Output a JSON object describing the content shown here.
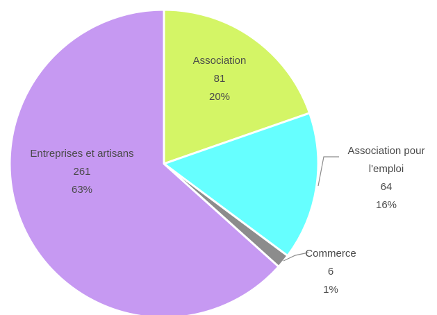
{
  "chart_data": {
    "type": "pie",
    "start_angle_deg": 0,
    "direction": "clockwise",
    "slices": [
      {
        "label": "Association",
        "value": 81,
        "percent": "20%",
        "color": "#d4f566",
        "label_position": "inside"
      },
      {
        "label": "Association pour l'emploi",
        "label_lines": [
          "Association pour",
          "l'emploi"
        ],
        "value": 64,
        "percent": "16%",
        "color": "#66ffff",
        "label_position": "outside"
      },
      {
        "label": "Commerce",
        "value": 6,
        "percent": "1%",
        "color": "#8c8c8c",
        "label_position": "outside"
      },
      {
        "label": "Entreprises et artisans",
        "value": 261,
        "percent": "63%",
        "color": "#c699f2",
        "label_position": "inside"
      }
    ]
  }
}
